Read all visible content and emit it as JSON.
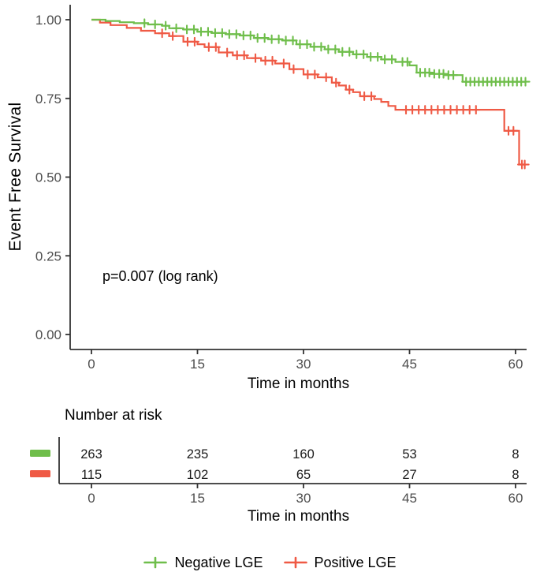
{
  "chart_data": {
    "type": "line",
    "variant": "kaplan_meier_step_plot",
    "title": "",
    "xlabel": "Time in months",
    "ylabel": "Event Free Survival",
    "annotation": "p=0.007 (log rank)",
    "xlim": [
      0,
      62
    ],
    "ylim": [
      0,
      1.0
    ],
    "x_ticks": [
      0,
      15,
      30,
      45,
      60
    ],
    "x_tick_labels": [
      "0",
      "15",
      "30",
      "45",
      "60"
    ],
    "y_ticks": [
      1.0,
      0.75,
      0.5,
      0.25,
      0
    ],
    "y_tick_labels": [
      "1.00",
      "0.75",
      "0.50",
      "0.25",
      "0.00"
    ],
    "grid": false,
    "legend_position": "bottom",
    "axis_color": "#333333",
    "tick_label_color": "#4d4d4d",
    "text_color": "#000000",
    "series": [
      {
        "name": "Negative LGE",
        "color": "#6FBE4B",
        "steps": [
          [
            0,
            1.0
          ],
          [
            2,
            0.996
          ],
          [
            4,
            0.992
          ],
          [
            6,
            0.989
          ],
          [
            8,
            0.985
          ],
          [
            10,
            0.981
          ],
          [
            11,
            0.973
          ],
          [
            13,
            0.969
          ],
          [
            15,
            0.962
          ],
          [
            17,
            0.958
          ],
          [
            19,
            0.954
          ],
          [
            21,
            0.95
          ],
          [
            23,
            0.942
          ],
          [
            25,
            0.938
          ],
          [
            27,
            0.934
          ],
          [
            29,
            0.922
          ],
          [
            31,
            0.914
          ],
          [
            33,
            0.906
          ],
          [
            35,
            0.898
          ],
          [
            37,
            0.89
          ],
          [
            39,
            0.882
          ],
          [
            41,
            0.874
          ],
          [
            43,
            0.866
          ],
          [
            45,
            0.855
          ],
          [
            46,
            0.832
          ],
          [
            48,
            0.828
          ],
          [
            50,
            0.824
          ],
          [
            52.5,
            0.803
          ],
          [
            61.5,
            0.803
          ]
        ],
        "censor_times": [
          7.5,
          9,
          10.5,
          12,
          13.5,
          14.5,
          15.5,
          16.5,
          17.5,
          18.5,
          19.5,
          20.5,
          21.5,
          22.5,
          23.5,
          24.5,
          25.5,
          26.5,
          27.5,
          28.5,
          29.5,
          30.5,
          31.5,
          32.5,
          33.5,
          34.5,
          35.5,
          36.5,
          37.5,
          38.5,
          39.5,
          40.5,
          41.5,
          42.5,
          44,
          44.7,
          46.5,
          47.2,
          47.8,
          48.5,
          49.2,
          49.8,
          50.5,
          51.2,
          53,
          53.6,
          54.2,
          54.8,
          55.4,
          56,
          56.6,
          57.2,
          57.8,
          58.4,
          59,
          59.6,
          60.2,
          60.8,
          61.4
        ]
      },
      {
        "name": "Positive LGE",
        "color": "#EF5A45",
        "steps": [
          [
            0,
            1.0
          ],
          [
            1.2,
            0.991
          ],
          [
            2.7,
            0.983
          ],
          [
            5,
            0.974
          ],
          [
            7,
            0.965
          ],
          [
            9,
            0.957
          ],
          [
            11,
            0.948
          ],
          [
            13,
            0.93
          ],
          [
            15,
            0.922
          ],
          [
            16,
            0.913
          ],
          [
            18,
            0.896
          ],
          [
            20,
            0.887
          ],
          [
            22,
            0.878
          ],
          [
            24,
            0.87
          ],
          [
            26,
            0.861
          ],
          [
            28,
            0.843
          ],
          [
            30,
            0.826
          ],
          [
            32,
            0.817
          ],
          [
            34,
            0.8
          ],
          [
            35,
            0.791
          ],
          [
            36,
            0.778
          ],
          [
            37,
            0.77
          ],
          [
            38,
            0.757
          ],
          [
            40,
            0.748
          ],
          [
            41,
            0.739
          ],
          [
            42,
            0.726
          ],
          [
            43,
            0.714
          ],
          [
            58.4,
            0.647
          ],
          [
            60.5,
            0.54
          ],
          [
            61.3,
            0.54
          ]
        ],
        "censor_times": [
          10,
          11.5,
          13.6,
          14.6,
          16.6,
          17.6,
          19.2,
          20.6,
          21.6,
          23.2,
          24.6,
          25.6,
          27.2,
          28.6,
          30.6,
          31.6,
          33.2,
          34.6,
          36.5,
          38.6,
          39.6,
          44.5,
          45.4,
          46.3,
          47.2,
          48.1,
          49,
          49.9,
          50.8,
          51.7,
          52.6,
          53.5,
          54.4,
          59,
          59.7,
          60.9,
          61.3
        ]
      }
    ],
    "risk_table": {
      "title": "Number at risk",
      "xlabel": "Time in months",
      "times": [
        0,
        15,
        30,
        45,
        60
      ],
      "rows": [
        {
          "name": "Negative LGE",
          "color": "#6FBE4B",
          "counts": [
            "263",
            "235",
            "160",
            "53",
            "8"
          ]
        },
        {
          "name": "Positive LGE",
          "color": "#EF5A45",
          "counts": [
            "115",
            "102",
            "65",
            "27",
            "8"
          ]
        }
      ]
    }
  }
}
